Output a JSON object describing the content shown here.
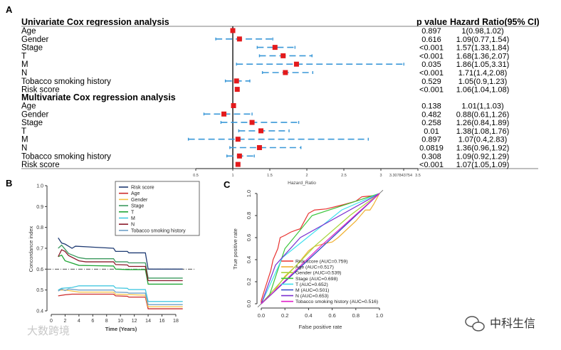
{
  "panels": {
    "a": "A",
    "b": "B",
    "c": "C"
  },
  "watermarks": {
    "left": "大数跨境",
    "right": "中科生信"
  },
  "chart_data": [
    {
      "type": "forest",
      "id": "A",
      "columns": {
        "p": "p value",
        "hr": "Hazard Ratio(95% CI)"
      },
      "xlabel": "Hazard_Ratio",
      "xticks": [
        0.5,
        1,
        1.5,
        2,
        2.5,
        3,
        3.307843754,
        3.5
      ],
      "xtick_labels": [
        "0.5",
        "1",
        "1.5",
        "2",
        "2.5",
        "3",
        "3.307843754",
        "3.5"
      ],
      "reference_line": 1,
      "sections": [
        {
          "title": "Univariate Cox regression analysis",
          "rows": [
            {
              "label": "Age",
              "hr": 1.0,
              "lo": 0.98,
              "hi": 1.02,
              "p": "0.897",
              "ci": "1(0.98,1.02)"
            },
            {
              "label": "Gender",
              "hr": 1.09,
              "lo": 0.77,
              "hi": 1.54,
              "p": "0.616",
              "ci": "1.09(0.77,1.54)"
            },
            {
              "label": "Stage",
              "hr": 1.57,
              "lo": 1.33,
              "hi": 1.84,
              "p": "<0.001",
              "ci": "1.57(1.33,1.84)"
            },
            {
              "label": "T",
              "hr": 1.68,
              "lo": 1.36,
              "hi": 2.07,
              "p": "<0.001",
              "ci": "1.68(1.36,2.07)"
            },
            {
              "label": "M",
              "hr": 1.86,
              "lo": 1.05,
              "hi": 3.31,
              "p": "0.035",
              "ci": "1.86(1.05,3.31)"
            },
            {
              "label": "N",
              "hr": 1.71,
              "lo": 1.4,
              "hi": 2.08,
              "p": "<0.001",
              "ci": "1.71(1.4,2.08)"
            },
            {
              "label": "Tobacco smoking history",
              "hr": 1.05,
              "lo": 0.9,
              "hi": 1.23,
              "p": "0.529",
              "ci": "1.05(0.9,1.23)"
            },
            {
              "label": "Risk score",
              "hr": 1.06,
              "lo": 1.04,
              "hi": 1.08,
              "p": "<0.001",
              "ci": "1.06(1.04,1.08)"
            }
          ]
        },
        {
          "title": "Multivariate Cox regression analysis",
          "rows": [
            {
              "label": "Age",
              "hr": 1.01,
              "lo": 1.0,
              "hi": 1.03,
              "p": "0.138",
              "ci": "1.01(1,1.03)"
            },
            {
              "label": "Gender",
              "hr": 0.88,
              "lo": 0.61,
              "hi": 1.26,
              "p": "0.482",
              "ci": "0.88(0.61,1.26)"
            },
            {
              "label": "Stage",
              "hr": 1.26,
              "lo": 0.84,
              "hi": 1.89,
              "p": "0.258",
              "ci": "1.26(0.84,1.89)"
            },
            {
              "label": "T",
              "hr": 1.38,
              "lo": 1.08,
              "hi": 1.76,
              "p": "0.01",
              "ci": "1.38(1.08,1.76)"
            },
            {
              "label": "M",
              "hr": 1.07,
              "lo": 0.4,
              "hi": 2.83,
              "p": "0.897",
              "ci": "1.07(0.4,2.83)"
            },
            {
              "label": "N",
              "hr": 1.36,
              "lo": 0.96,
              "hi": 1.92,
              "p": "0.0819",
              "ci": "1.36(0.96,1.92)"
            },
            {
              "label": "Tobacco smoking history",
              "hr": 1.09,
              "lo": 0.92,
              "hi": 1.29,
              "p": "0.308",
              "ci": "1.09(0.92,1.29)"
            },
            {
              "label": "Risk score",
              "hr": 1.07,
              "lo": 1.05,
              "hi": 1.09,
              "p": "<0.001",
              "ci": "1.07(1.05,1.09)"
            }
          ]
        }
      ],
      "colors": {
        "point": "#e31a1c",
        "ci": "#3a98d8"
      }
    },
    {
      "type": "line",
      "id": "B",
      "xlabel": "Time (Years)",
      "ylabel": "Concordance index",
      "xlim": [
        0,
        19
      ],
      "ylim": [
        0.4,
        1.0
      ],
      "xticks": [
        0,
        2,
        4,
        6,
        8,
        10,
        12,
        14,
        16,
        18
      ],
      "yticks": [
        0.4,
        0.5,
        0.6,
        0.7,
        0.8,
        0.9,
        1.0
      ],
      "reference_line": 0.6,
      "legend": "top-right",
      "series": [
        {
          "name": "Risk score",
          "color": "#1f3b73",
          "points": [
            [
              1,
              0.75
            ],
            [
              1.5,
              0.725
            ],
            [
              2,
              0.72
            ],
            [
              3,
              0.7
            ],
            [
              3.5,
              0.71
            ],
            [
              9,
              0.7
            ],
            [
              9.3,
              0.685
            ],
            [
              11,
              0.685
            ],
            [
              11.2,
              0.678
            ],
            [
              13.6,
              0.678
            ],
            [
              14,
              0.6
            ],
            [
              19,
              0.6
            ]
          ]
        },
        {
          "name": "Age",
          "color": "#cc2a2a",
          "points": [
            [
              1,
              0.472
            ],
            [
              2,
              0.477
            ],
            [
              3,
              0.48
            ],
            [
              9,
              0.48
            ],
            [
              9.3,
              0.472
            ],
            [
              11,
              0.47
            ],
            [
              11.2,
              0.466
            ],
            [
              13.6,
              0.466
            ],
            [
              14,
              0.41
            ],
            [
              19,
              0.41
            ]
          ]
        },
        {
          "name": "Gender",
          "color": "#f5c242",
          "points": [
            [
              1,
              0.5
            ],
            [
              2,
              0.5
            ],
            [
              4,
              0.49
            ],
            [
              9,
              0.49
            ],
            [
              9.3,
              0.48
            ],
            [
              11,
              0.478
            ],
            [
              13.6,
              0.475
            ],
            [
              14,
              0.42
            ],
            [
              19,
              0.42
            ]
          ]
        },
        {
          "name": "Stage",
          "color": "#3c9a5f",
          "points": [
            [
              1,
              0.7
            ],
            [
              1.5,
              0.715
            ],
            [
              2.5,
              0.675
            ],
            [
              4,
              0.655
            ],
            [
              5,
              0.65
            ],
            [
              9,
              0.65
            ],
            [
              9.3,
              0.635
            ],
            [
              11,
              0.635
            ],
            [
              11.2,
              0.63
            ],
            [
              13.6,
              0.63
            ],
            [
              14,
              0.557
            ],
            [
              19,
              0.557
            ]
          ]
        },
        {
          "name": "T",
          "color": "#1fa535",
          "points": [
            [
              1,
              0.66
            ],
            [
              1.5,
              0.667
            ],
            [
              2,
              0.64
            ],
            [
              4,
              0.618
            ],
            [
              9,
              0.615
            ],
            [
              9.3,
              0.6
            ],
            [
              11,
              0.598
            ],
            [
              13.6,
              0.598
            ],
            [
              14,
              0.528
            ],
            [
              19,
              0.528
            ]
          ]
        },
        {
          "name": "M",
          "color": "#45c8e0",
          "points": [
            [
              1,
              0.5
            ],
            [
              1.5,
              0.508
            ],
            [
              3,
              0.512
            ],
            [
              4,
              0.52
            ],
            [
              9,
              0.52
            ],
            [
              9.3,
              0.51
            ],
            [
              11,
              0.508
            ],
            [
              11.2,
              0.502
            ],
            [
              13.6,
              0.502
            ],
            [
              14,
              0.445
            ],
            [
              19,
              0.445
            ]
          ]
        },
        {
          "name": "N",
          "color": "#8b1a2b",
          "points": [
            [
              1,
              0.66
            ],
            [
              1.5,
              0.693
            ],
            [
              2,
              0.685
            ],
            [
              2.5,
              0.665
            ],
            [
              4,
              0.64
            ],
            [
              5,
              0.635
            ],
            [
              9,
              0.635
            ],
            [
              9.3,
              0.622
            ],
            [
              11,
              0.62
            ],
            [
              11.2,
              0.613
            ],
            [
              13.6,
              0.613
            ],
            [
              14,
              0.545
            ],
            [
              19,
              0.545
            ]
          ]
        },
        {
          "name": "Tobacco smoking history",
          "color": "#6fa0c8",
          "points": [
            [
              1,
              0.495
            ],
            [
              1.5,
              0.505
            ],
            [
              2,
              0.497
            ],
            [
              2.5,
              0.505
            ],
            [
              4,
              0.5
            ],
            [
              9,
              0.5
            ],
            [
              9.3,
              0.49
            ],
            [
              11,
              0.488
            ],
            [
              11.2,
              0.485
            ],
            [
              13.6,
              0.485
            ],
            [
              14,
              0.43
            ],
            [
              19,
              0.43
            ]
          ]
        }
      ]
    },
    {
      "type": "line",
      "id": "C",
      "xlabel": "False positive rate",
      "ylabel": "True positive rate",
      "xlim": [
        0,
        1
      ],
      "ylim": [
        0,
        1
      ],
      "xticks": [
        0,
        0.2,
        0.4,
        0.6,
        0.8,
        1.0
      ],
      "xtick_labels": [
        "0.0",
        "0.2",
        "0.4",
        "0.6",
        "0.8",
        "1.0"
      ],
      "yticks": [
        0,
        0.2,
        0.4,
        0.6,
        0.8,
        1.0
      ],
      "ytick_labels": [
        "0.0",
        "0.2",
        "0.4",
        "0.6",
        "0.8",
        "1.0"
      ],
      "legend": "bottom-right",
      "series": [
        {
          "name": "Risk score (AUC=0.759)",
          "auc": 0.759,
          "color": "#e8312f",
          "points": [
            [
              0,
              0
            ],
            [
              0,
              0.03
            ],
            [
              0.02,
              0.1
            ],
            [
              0.05,
              0.2
            ],
            [
              0.08,
              0.3
            ],
            [
              0.1,
              0.4
            ],
            [
              0.12,
              0.45
            ],
            [
              0.14,
              0.5
            ],
            [
              0.16,
              0.6
            ],
            [
              0.2,
              0.62
            ],
            [
              0.25,
              0.65
            ],
            [
              0.3,
              0.67
            ],
            [
              0.33,
              0.68
            ],
            [
              0.37,
              0.76
            ],
            [
              0.4,
              0.82
            ],
            [
              0.45,
              0.85
            ],
            [
              0.55,
              0.86
            ],
            [
              0.7,
              0.9
            ],
            [
              0.8,
              0.93
            ],
            [
              0.85,
              0.97
            ],
            [
              0.95,
              0.98
            ],
            [
              1,
              1
            ]
          ]
        },
        {
          "name": "Age (AUC=0.517)",
          "auc": 0.517,
          "color": "#f0b030",
          "points": [
            [
              0,
              0
            ],
            [
              0.1,
              0.1
            ],
            [
              0.2,
              0.25
            ],
            [
              0.3,
              0.35
            ],
            [
              0.4,
              0.48
            ],
            [
              0.45,
              0.52
            ],
            [
              0.55,
              0.55
            ],
            [
              0.6,
              0.56
            ],
            [
              0.65,
              0.6
            ],
            [
              0.7,
              0.65
            ],
            [
              0.8,
              0.75
            ],
            [
              0.88,
              0.85
            ],
            [
              0.92,
              0.85
            ],
            [
              0.95,
              0.9
            ],
            [
              1,
              1
            ]
          ]
        },
        {
          "name": "Gender (AUC=0.539)",
          "auc": 0.539,
          "color": "#a8d43a",
          "points": [
            [
              0,
              0
            ],
            [
              0.2,
              0.24
            ],
            [
              0.46,
              0.53
            ],
            [
              0.75,
              0.8
            ],
            [
              1,
              1
            ]
          ]
        },
        {
          "name": "Stage (AUC=0.698)",
          "auc": 0.698,
          "color": "#3cc63c",
          "points": [
            [
              0,
              0
            ],
            [
              0.07,
              0.08
            ],
            [
              0.2,
              0.5
            ],
            [
              0.43,
              0.8
            ],
            [
              1,
              1
            ]
          ]
        },
        {
          "name": "T (AUC=0.652)",
          "auc": 0.652,
          "color": "#3fe0ee",
          "points": [
            [
              0,
              0
            ],
            [
              0.18,
              0.42
            ],
            [
              0.68,
              0.85
            ],
            [
              1,
              1
            ]
          ]
        },
        {
          "name": "M (AUC=0.501)",
          "auc": 0.501,
          "color": "#3048c8",
          "points": [
            [
              0,
              0
            ],
            [
              0.5,
              0.5
            ],
            [
              1,
              1
            ]
          ]
        },
        {
          "name": "N (AUC=0.653)",
          "auc": 0.653,
          "color": "#7a30d0",
          "points": [
            [
              0,
              0
            ],
            [
              0.12,
              0.35
            ],
            [
              0.33,
              0.6
            ],
            [
              1,
              1
            ]
          ]
        },
        {
          "name": "Tobacco smoking history (AUC=0.516)",
          "auc": 0.516,
          "color": "#e020c8",
          "points": [
            [
              0,
              0
            ],
            [
              0.5,
              0.52
            ],
            [
              1,
              1
            ]
          ]
        }
      ]
    }
  ]
}
